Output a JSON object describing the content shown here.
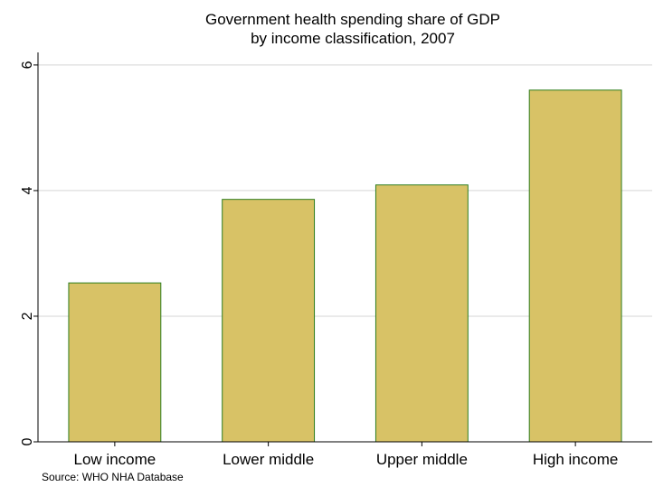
{
  "chart_data": {
    "type": "bar",
    "title": [
      "Government health spending share of GDP",
      "by income classification, 2007"
    ],
    "categories": [
      "Low income",
      "Lower middle",
      "Upper middle",
      "High income"
    ],
    "values": [
      2.53,
      3.86,
      4.09,
      5.6
    ],
    "xlabel": "",
    "ylabel": "",
    "ylim": [
      0,
      6.2
    ],
    "yticks": [
      "0",
      "2",
      "4",
      "6"
    ],
    "ytick_values": [
      0,
      2,
      4,
      6
    ],
    "grid": true,
    "note": "Source: WHO NHA Database",
    "colors": {
      "bar_fill": "#d8c266",
      "bar_stroke": "#2e7d1e",
      "grid": "#e3e3e3",
      "axis": "#000000"
    }
  }
}
